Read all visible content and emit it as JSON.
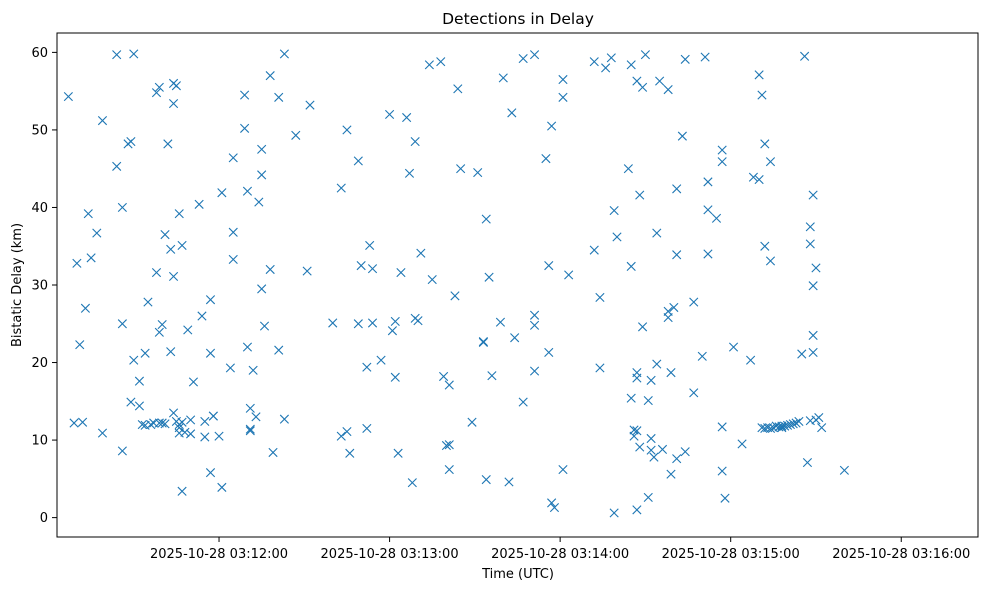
{
  "chart_data": {
    "type": "scatter",
    "title": "Detections in Delay",
    "xlabel": "Time (UTC)",
    "ylabel": "Bistatic Delay (km)",
    "x_is_time": true,
    "xlim": [
      "2025-10-28 03:11:03",
      "2025-10-28 03:16:27"
    ],
    "ylim": [
      -2.5,
      62.5
    ],
    "x_ticks": [
      "2025-10-28 03:12:00",
      "2025-10-28 03:13:00",
      "2025-10-28 03:14:00",
      "2025-10-28 03:15:00",
      "2025-10-28 03:16:00"
    ],
    "y_ticks": [
      0,
      10,
      20,
      30,
      40,
      50,
      60
    ],
    "grid": false,
    "marker": "x",
    "color": "#1f77b4",
    "series": [
      {
        "points": [
          [
            "03:11:07",
            54.3
          ],
          [
            "03:11:09",
            12.2
          ],
          [
            "03:11:10",
            32.8
          ],
          [
            "03:11:11",
            22.3
          ],
          [
            "03:11:12",
            12.3
          ],
          [
            "03:11:13",
            27.0
          ],
          [
            "03:11:14",
            39.2
          ],
          [
            "03:11:15",
            33.5
          ],
          [
            "03:11:17",
            36.7
          ],
          [
            "03:11:19",
            51.2
          ],
          [
            "03:11:19",
            10.9
          ],
          [
            "03:11:24",
            59.7
          ],
          [
            "03:11:24",
            45.3
          ],
          [
            "03:11:26",
            40.0
          ],
          [
            "03:11:26",
            25.0
          ],
          [
            "03:11:26",
            8.6
          ],
          [
            "03:11:28",
            48.2
          ],
          [
            "03:11:29",
            48.5
          ],
          [
            "03:11:29",
            14.9
          ],
          [
            "03:11:30",
            20.3
          ],
          [
            "03:11:30",
            59.8
          ],
          [
            "03:11:32",
            14.4
          ],
          [
            "03:11:32",
            17.6
          ],
          [
            "03:11:33",
            12.0
          ],
          [
            "03:11:34",
            11.9
          ],
          [
            "03:11:34",
            21.2
          ],
          [
            "03:11:35",
            27.8
          ],
          [
            "03:11:36",
            12.0
          ],
          [
            "03:11:37",
            12.2
          ],
          [
            "03:11:38",
            31.6
          ],
          [
            "03:11:38",
            54.8
          ],
          [
            "03:11:39",
            55.5
          ],
          [
            "03:11:39",
            12.2
          ],
          [
            "03:11:39",
            23.9
          ],
          [
            "03:11:40",
            24.9
          ],
          [
            "03:11:40",
            12.2
          ],
          [
            "03:11:41",
            12.1
          ],
          [
            "03:11:41",
            36.5
          ],
          [
            "03:11:42",
            48.2
          ],
          [
            "03:11:43",
            34.6
          ],
          [
            "03:11:43",
            21.4
          ],
          [
            "03:11:44",
            56.0
          ],
          [
            "03:11:44",
            53.4
          ],
          [
            "03:11:44",
            31.1
          ],
          [
            "03:11:44",
            13.5
          ],
          [
            "03:11:45",
            12.4
          ],
          [
            "03:11:45",
            55.7
          ],
          [
            "03:11:46",
            12.0
          ],
          [
            "03:11:46",
            11.6
          ],
          [
            "03:11:46",
            39.2
          ],
          [
            "03:11:46",
            10.9
          ],
          [
            "03:11:47",
            12.3
          ],
          [
            "03:11:47",
            35.1
          ],
          [
            "03:11:47",
            3.4
          ],
          [
            "03:11:48",
            11.0
          ],
          [
            "03:11:49",
            24.2
          ],
          [
            "03:11:50",
            10.8
          ],
          [
            "03:11:50",
            12.6
          ],
          [
            "03:11:51",
            17.5
          ],
          [
            "03:11:53",
            40.4
          ],
          [
            "03:11:54",
            26.0
          ],
          [
            "03:11:55",
            10.4
          ],
          [
            "03:11:55",
            12.4
          ],
          [
            "03:11:57",
            21.2
          ],
          [
            "03:11:57",
            28.1
          ],
          [
            "03:11:57",
            5.8
          ],
          [
            "03:11:58",
            13.1
          ],
          [
            "03:11:58",
            13.1
          ],
          [
            "03:12:00",
            10.5
          ],
          [
            "03:12:01",
            41.9
          ],
          [
            "03:12:01",
            3.9
          ],
          [
            "03:12:04",
            19.3
          ],
          [
            "03:12:05",
            46.4
          ],
          [
            "03:12:05",
            36.8
          ],
          [
            "03:12:05",
            33.3
          ],
          [
            "03:12:09",
            54.5
          ],
          [
            "03:12:09",
            50.2
          ],
          [
            "03:12:10",
            42.1
          ],
          [
            "03:12:10",
            22.0
          ],
          [
            "03:12:11",
            11.2
          ],
          [
            "03:12:11",
            14.1
          ],
          [
            "03:12:11",
            11.4
          ],
          [
            "03:12:12",
            19.0
          ],
          [
            "03:12:13",
            13.0
          ],
          [
            "03:12:14",
            40.7
          ],
          [
            "03:12:15",
            47.5
          ],
          [
            "03:12:15",
            44.2
          ],
          [
            "03:12:15",
            29.5
          ],
          [
            "03:12:16",
            24.7
          ],
          [
            "03:12:18",
            57.0
          ],
          [
            "03:12:18",
            32.0
          ],
          [
            "03:12:19",
            8.4
          ],
          [
            "03:12:21",
            54.2
          ],
          [
            "03:12:21",
            21.6
          ],
          [
            "03:12:23",
            59.8
          ],
          [
            "03:12:23",
            12.7
          ],
          [
            "03:12:27",
            49.3
          ],
          [
            "03:12:31",
            31.8
          ],
          [
            "03:12:32",
            53.2
          ],
          [
            "03:12:40",
            25.1
          ],
          [
            "03:12:43",
            42.5
          ],
          [
            "03:12:43",
            10.5
          ],
          [
            "03:12:45",
            50.0
          ],
          [
            "03:12:45",
            11.1
          ],
          [
            "03:12:46",
            8.3
          ],
          [
            "03:12:49",
            46.0
          ],
          [
            "03:12:49",
            25.0
          ],
          [
            "03:12:50",
            32.5
          ],
          [
            "03:12:52",
            19.4
          ],
          [
            "03:12:52",
            11.5
          ],
          [
            "03:12:53",
            35.1
          ],
          [
            "03:12:54",
            25.1
          ],
          [
            "03:12:54",
            32.1
          ],
          [
            "03:12:57",
            20.3
          ],
          [
            "03:13:00",
            52.0
          ],
          [
            "03:13:01",
            24.1
          ],
          [
            "03:13:02",
            18.1
          ],
          [
            "03:13:02",
            25.3
          ],
          [
            "03:13:03",
            8.3
          ],
          [
            "03:13:04",
            31.6
          ],
          [
            "03:13:06",
            51.6
          ],
          [
            "03:13:07",
            44.4
          ],
          [
            "03:13:08",
            4.5
          ],
          [
            "03:13:09",
            48.5
          ],
          [
            "03:13:09",
            25.7
          ],
          [
            "03:13:10",
            25.4
          ],
          [
            "03:13:11",
            34.1
          ],
          [
            "03:13:14",
            58.4
          ],
          [
            "03:13:15",
            30.7
          ],
          [
            "03:13:18",
            58.8
          ],
          [
            "03:13:19",
            18.2
          ],
          [
            "03:13:20",
            9.3
          ],
          [
            "03:13:21",
            9.4
          ],
          [
            "03:13:21",
            17.1
          ],
          [
            "03:13:21",
            6.2
          ],
          [
            "03:13:23",
            28.6
          ],
          [
            "03:13:24",
            55.3
          ],
          [
            "03:13:25",
            45.0
          ],
          [
            "03:13:29",
            12.3
          ],
          [
            "03:13:31",
            44.5
          ],
          [
            "03:13:33",
            22.7
          ],
          [
            "03:13:33",
            22.6
          ],
          [
            "03:13:34",
            4.9
          ],
          [
            "03:13:34",
            38.5
          ],
          [
            "03:13:35",
            31.0
          ],
          [
            "03:13:36",
            18.3
          ],
          [
            "03:13:39",
            25.2
          ],
          [
            "03:13:40",
            56.7
          ],
          [
            "03:13:42",
            4.6
          ],
          [
            "03:13:43",
            52.2
          ],
          [
            "03:13:44",
            23.2
          ],
          [
            "03:13:47",
            59.2
          ],
          [
            "03:13:47",
            14.9
          ],
          [
            "03:13:51",
            59.7
          ],
          [
            "03:13:51",
            26.1
          ],
          [
            "03:13:51",
            24.8
          ],
          [
            "03:13:51",
            18.9
          ],
          [
            "03:13:55",
            46.3
          ],
          [
            "03:13:56",
            32.5
          ],
          [
            "03:13:56",
            21.3
          ],
          [
            "03:13:57",
            50.5
          ],
          [
            "03:13:57",
            1.9
          ],
          [
            "03:13:58",
            1.3
          ],
          [
            "03:14:01",
            56.5
          ],
          [
            "03:14:01",
            54.2
          ],
          [
            "03:14:01",
            6.2
          ],
          [
            "03:14:03",
            31.3
          ],
          [
            "03:14:12",
            58.8
          ],
          [
            "03:14:12",
            34.5
          ],
          [
            "03:14:14",
            28.4
          ],
          [
            "03:14:14",
            19.3
          ],
          [
            "03:14:16",
            58.0
          ],
          [
            "03:14:18",
            59.3
          ],
          [
            "03:14:19",
            39.6
          ],
          [
            "03:14:19",
            0.6
          ],
          [
            "03:14:20",
            36.2
          ],
          [
            "03:14:24",
            45.0
          ],
          [
            "03:14:25",
            58.4
          ],
          [
            "03:14:25",
            32.4
          ],
          [
            "03:14:25",
            15.4
          ],
          [
            "03:14:26",
            11.3
          ],
          [
            "03:14:26",
            10.5
          ],
          [
            "03:14:27",
            56.3
          ],
          [
            "03:14:27",
            18.7
          ],
          [
            "03:14:27",
            18.0
          ],
          [
            "03:14:27",
            11.2
          ],
          [
            "03:14:27",
            1.0
          ],
          [
            "03:14:28",
            41.6
          ],
          [
            "03:14:28",
            9.1
          ],
          [
            "03:14:29",
            55.5
          ],
          [
            "03:14:29",
            24.6
          ],
          [
            "03:14:30",
            59.7
          ],
          [
            "03:14:31",
            15.1
          ],
          [
            "03:14:31",
            2.6
          ],
          [
            "03:14:32",
            17.7
          ],
          [
            "03:14:32",
            10.2
          ],
          [
            "03:14:32",
            8.7
          ],
          [
            "03:14:33",
            7.8
          ],
          [
            "03:14:34",
            36.7
          ],
          [
            "03:14:34",
            19.8
          ],
          [
            "03:14:35",
            56.3
          ],
          [
            "03:14:36",
            8.8
          ],
          [
            "03:14:38",
            55.2
          ],
          [
            "03:14:38",
            26.6
          ],
          [
            "03:14:38",
            25.8
          ],
          [
            "03:14:39",
            18.7
          ],
          [
            "03:14:39",
            5.6
          ],
          [
            "03:14:40",
            27.1
          ],
          [
            "03:14:41",
            42.4
          ],
          [
            "03:14:41",
            33.9
          ],
          [
            "03:14:41",
            7.6
          ],
          [
            "03:14:43",
            49.2
          ],
          [
            "03:14:44",
            59.1
          ],
          [
            "03:14:44",
            8.5
          ],
          [
            "03:14:47",
            27.8
          ],
          [
            "03:14:47",
            16.1
          ],
          [
            "03:14:50",
            20.8
          ],
          [
            "03:14:51",
            59.4
          ],
          [
            "03:14:52",
            43.3
          ],
          [
            "03:14:52",
            39.7
          ],
          [
            "03:14:52",
            34.0
          ],
          [
            "03:14:55",
            38.6
          ],
          [
            "03:14:57",
            47.4
          ],
          [
            "03:14:57",
            45.9
          ],
          [
            "03:14:57",
            11.7
          ],
          [
            "03:14:57",
            6.0
          ],
          [
            "03:14:58",
            2.5
          ],
          [
            "03:15:01",
            22.0
          ],
          [
            "03:15:04",
            9.5
          ],
          [
            "03:15:07",
            20.3
          ],
          [
            "03:15:08",
            43.9
          ],
          [
            "03:15:10",
            57.1
          ],
          [
            "03:15:10",
            43.6
          ],
          [
            "03:15:11",
            54.5
          ],
          [
            "03:15:11",
            11.6
          ],
          [
            "03:15:12",
            11.5
          ],
          [
            "03:15:12",
            35.0
          ],
          [
            "03:15:12",
            48.2
          ],
          [
            "03:15:13",
            11.6
          ],
          [
            "03:15:14",
            45.9
          ],
          [
            "03:15:14",
            33.1
          ],
          [
            "03:15:14",
            11.5
          ],
          [
            "03:15:15",
            11.6
          ],
          [
            "03:15:16",
            11.8
          ],
          [
            "03:15:17",
            11.7
          ],
          [
            "03:15:18",
            11.8
          ],
          [
            "03:15:18",
            11.6
          ],
          [
            "03:15:19",
            11.8
          ],
          [
            "03:15:20",
            11.9
          ],
          [
            "03:15:21",
            12.0
          ],
          [
            "03:15:22",
            12.1
          ],
          [
            "03:15:23",
            12.2
          ],
          [
            "03:15:24",
            12.4
          ],
          [
            "03:15:25",
            21.1
          ],
          [
            "03:15:26",
            59.5
          ],
          [
            "03:15:27",
            7.1
          ],
          [
            "03:15:28",
            12.5
          ],
          [
            "03:15:28",
            37.5
          ],
          [
            "03:15:28",
            35.3
          ],
          [
            "03:15:29",
            21.3
          ],
          [
            "03:15:29",
            23.5
          ],
          [
            "03:15:29",
            29.9
          ],
          [
            "03:15:29",
            41.6
          ],
          [
            "03:15:30",
            32.2
          ],
          [
            "03:15:30",
            12.6
          ],
          [
            "03:15:31",
            12.9
          ],
          [
            "03:15:32",
            11.6
          ],
          [
            "03:15:40",
            6.1
          ]
        ]
      }
    ]
  }
}
